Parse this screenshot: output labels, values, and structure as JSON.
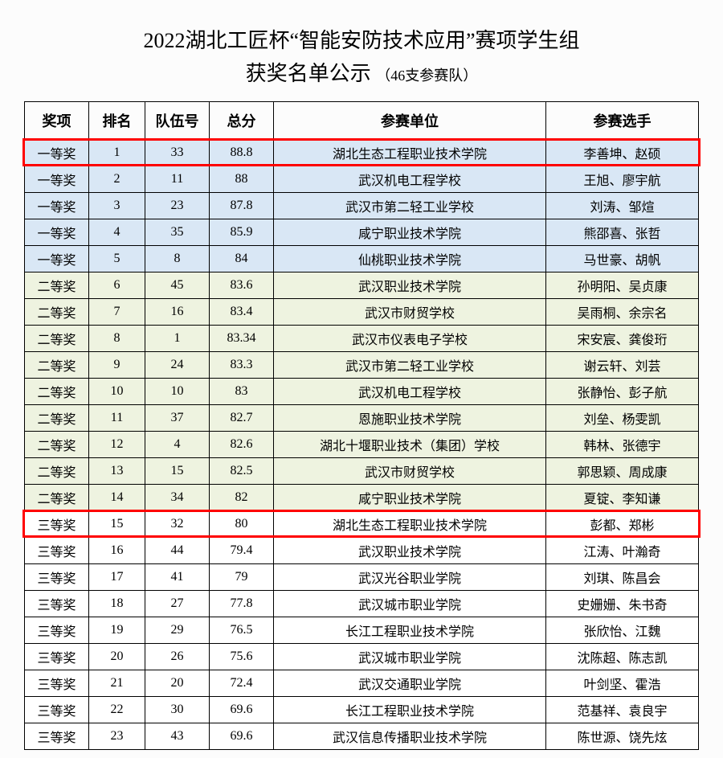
{
  "title_line1": "2022湖北工匠杯“智能安防技术应用”赛项学生组",
  "title_line2_main": "获奖名单公示",
  "title_line2_sub": "（46支参赛队）",
  "columns": [
    "奖项",
    "排名",
    "队伍号",
    "总分",
    "参赛单位",
    "参赛选手"
  ],
  "tiers": {
    "first": "一等奖",
    "second": "二等奖",
    "third": "三等奖"
  },
  "tier_colors": {
    "first": "#d9e7f5",
    "second": "#eef3e0",
    "third": "#ffffff"
  },
  "highlight_color": "#ff0000",
  "highlight_rows": [
    1,
    15
  ],
  "rows": [
    {
      "tier": "first",
      "rank": "1",
      "team": "33",
      "score": "88.8",
      "unit": "湖北生态工程职业技术学院",
      "players": "李善坤、赵硕"
    },
    {
      "tier": "first",
      "rank": "2",
      "team": "11",
      "score": "88",
      "unit": "武汉机电工程学校",
      "players": "王旭、廖宇航"
    },
    {
      "tier": "first",
      "rank": "3",
      "team": "23",
      "score": "87.8",
      "unit": "武汉市第二轻工业学校",
      "players": "刘涛、邹煊"
    },
    {
      "tier": "first",
      "rank": "4",
      "team": "35",
      "score": "85.9",
      "unit": "咸宁职业技术学院",
      "players": "熊邵喜、张哲"
    },
    {
      "tier": "first",
      "rank": "5",
      "team": "8",
      "score": "84",
      "unit": "仙桃职业技术学院",
      "players": "马世豪、胡帆"
    },
    {
      "tier": "second",
      "rank": "6",
      "team": "45",
      "score": "83.6",
      "unit": "武汉职业技术学院",
      "players": "孙明阳、吴贞康"
    },
    {
      "tier": "second",
      "rank": "7",
      "team": "16",
      "score": "83.4",
      "unit": "武汉市财贸学校",
      "players": "吴雨桐、余宗名"
    },
    {
      "tier": "second",
      "rank": "8",
      "team": "1",
      "score": "83.34",
      "unit": "武汉市仪表电子学校",
      "players": "宋安宸、龚俊珩"
    },
    {
      "tier": "second",
      "rank": "9",
      "team": "24",
      "score": "83.3",
      "unit": "武汉市第二轻工业学校",
      "players": "谢云轩、刘芸"
    },
    {
      "tier": "second",
      "rank": "10",
      "team": "10",
      "score": "83",
      "unit": "武汉机电工程学校",
      "players": "张静怡、彭子航"
    },
    {
      "tier": "second",
      "rank": "11",
      "team": "37",
      "score": "82.7",
      "unit": "恩施职业技术学院",
      "players": "刘垒、杨雯凯"
    },
    {
      "tier": "second",
      "rank": "12",
      "team": "4",
      "score": "82.6",
      "unit": "湖北十堰职业技术（集团）学校",
      "players": "韩林、张德宇"
    },
    {
      "tier": "second",
      "rank": "13",
      "team": "15",
      "score": "82.5",
      "unit": "武汉市财贸学校",
      "players": "郭思颖、周成康"
    },
    {
      "tier": "second",
      "rank": "14",
      "team": "34",
      "score": "82",
      "unit": "咸宁职业技术学院",
      "players": "夏锭、李知谦"
    },
    {
      "tier": "third",
      "rank": "15",
      "team": "32",
      "score": "80",
      "unit": "湖北生态工程职业技术学院",
      "players": "彭都、郑彬"
    },
    {
      "tier": "third",
      "rank": "16",
      "team": "44",
      "score": "79.4",
      "unit": "武汉职业技术学院",
      "players": "江涛、叶瀚奇"
    },
    {
      "tier": "third",
      "rank": "17",
      "team": "41",
      "score": "79",
      "unit": "武汉光谷职业学院",
      "players": "刘琪、陈昌会"
    },
    {
      "tier": "third",
      "rank": "18",
      "team": "27",
      "score": "77.8",
      "unit": "武汉城市职业学院",
      "players": "史姗姗、朱书奇"
    },
    {
      "tier": "third",
      "rank": "19",
      "team": "29",
      "score": "76.5",
      "unit": "长江工程职业技术学院",
      "players": "张欣怡、江魏"
    },
    {
      "tier": "third",
      "rank": "20",
      "team": "26",
      "score": "75.6",
      "unit": "武汉城市职业学院",
      "players": "沈陈超、陈志凯"
    },
    {
      "tier": "third",
      "rank": "21",
      "team": "20",
      "score": "72.4",
      "unit": "武汉交通职业学院",
      "players": "叶剑坚、霍浩"
    },
    {
      "tier": "third",
      "rank": "22",
      "team": "30",
      "score": "69.6",
      "unit": "长江工程职业技术学院",
      "players": "范基祥、袁良宇"
    },
    {
      "tier": "third",
      "rank": "23",
      "team": "43",
      "score": "69.6",
      "unit": "武汉信息传播职业技术学院",
      "players": "陈世源、饶先炫"
    }
  ]
}
